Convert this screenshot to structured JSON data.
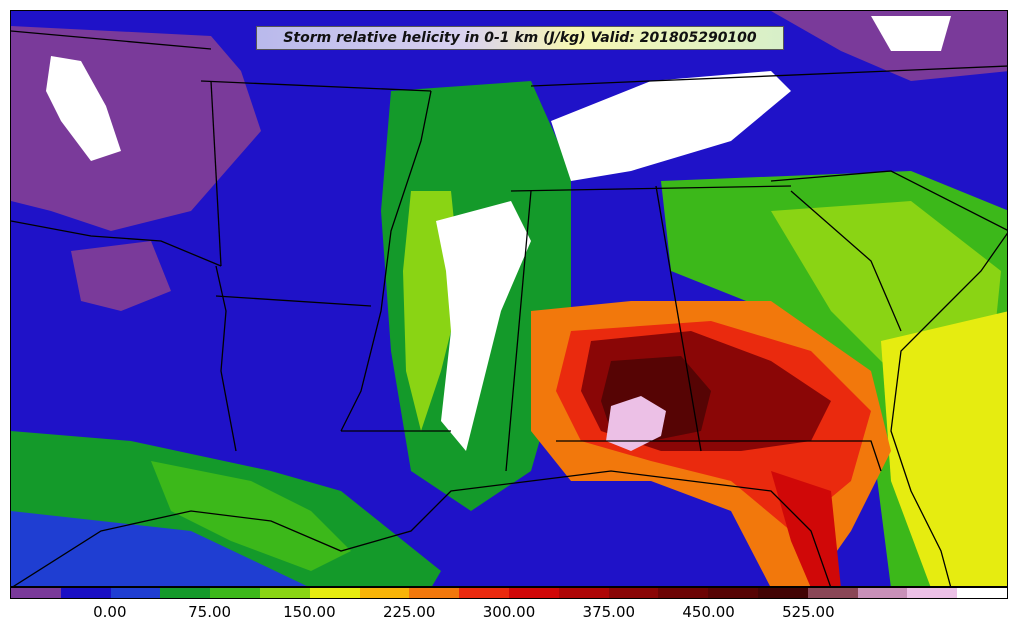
{
  "title": "Storm relative helicity in 0-1 km (J/kg) Valid: 201805290100",
  "colorbar": {
    "colors": [
      "#7a3a9a",
      "#1a0fc4",
      "#1f3ed2",
      "#149a2a",
      "#3cb81a",
      "#8ad414",
      "#e6ec10",
      "#f8b408",
      "#f2780c",
      "#ea2a0e",
      "#d00808",
      "#ae0606",
      "#8a0606",
      "#6c0404",
      "#560404",
      "#420404",
      "#8a4656",
      "#c890b8",
      "#ecc0e6",
      "#ffffff"
    ],
    "tick_labels": [
      "0.00",
      "75.00",
      "150.00",
      "225.00",
      "300.00",
      "375.00",
      "450.00",
      "525.00"
    ]
  },
  "map": {
    "field": "Storm relative helicity in 0-1 km",
    "units": "J/kg",
    "valid": "201805290100"
  }
}
